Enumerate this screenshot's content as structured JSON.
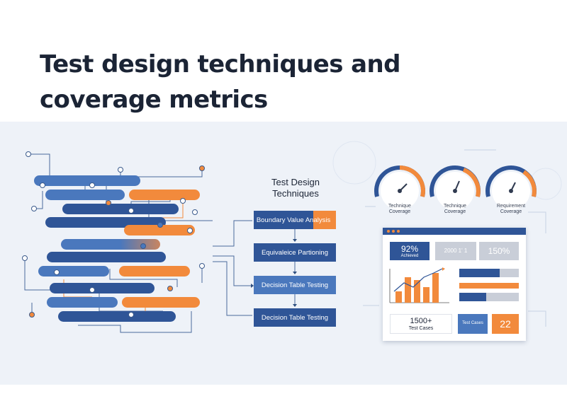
{
  "title": {
    "line1": "Test design techniques and",
    "line2": "coverage metrics"
  },
  "flow": {
    "title_line1": "Test Design",
    "title_line2": "Techniques",
    "steps": [
      "Boundary Value Analysis",
      "Equivaleice Partioning",
      "Decision Table Testing",
      "Decision Table Testing"
    ]
  },
  "gauges": [
    {
      "line1": "Technique",
      "line2": "Coverage"
    },
    {
      "line1": "Technique",
      "line2": "Coverage"
    },
    {
      "line1": "Requirement",
      "line2": "Coverage"
    }
  ],
  "dashboard": {
    "stat1_value": "92%",
    "stat1_label": "Achieved",
    "stat2_value": "2000 1' 1",
    "stat3_value": "150%",
    "test_cases_value": "1500+",
    "test_cases_label": "Test Cases",
    "test_cases_button": "Test Cases",
    "count_value": "22"
  },
  "colors": {
    "navy": "#2f5597",
    "blue": "#4a78bd",
    "orange": "#f28a3c",
    "bg": "#eef2f8"
  },
  "icons": [
    "gauge-icon",
    "arrow-down-icon",
    "bar-chart-icon",
    "trend-arrow-icon"
  ]
}
